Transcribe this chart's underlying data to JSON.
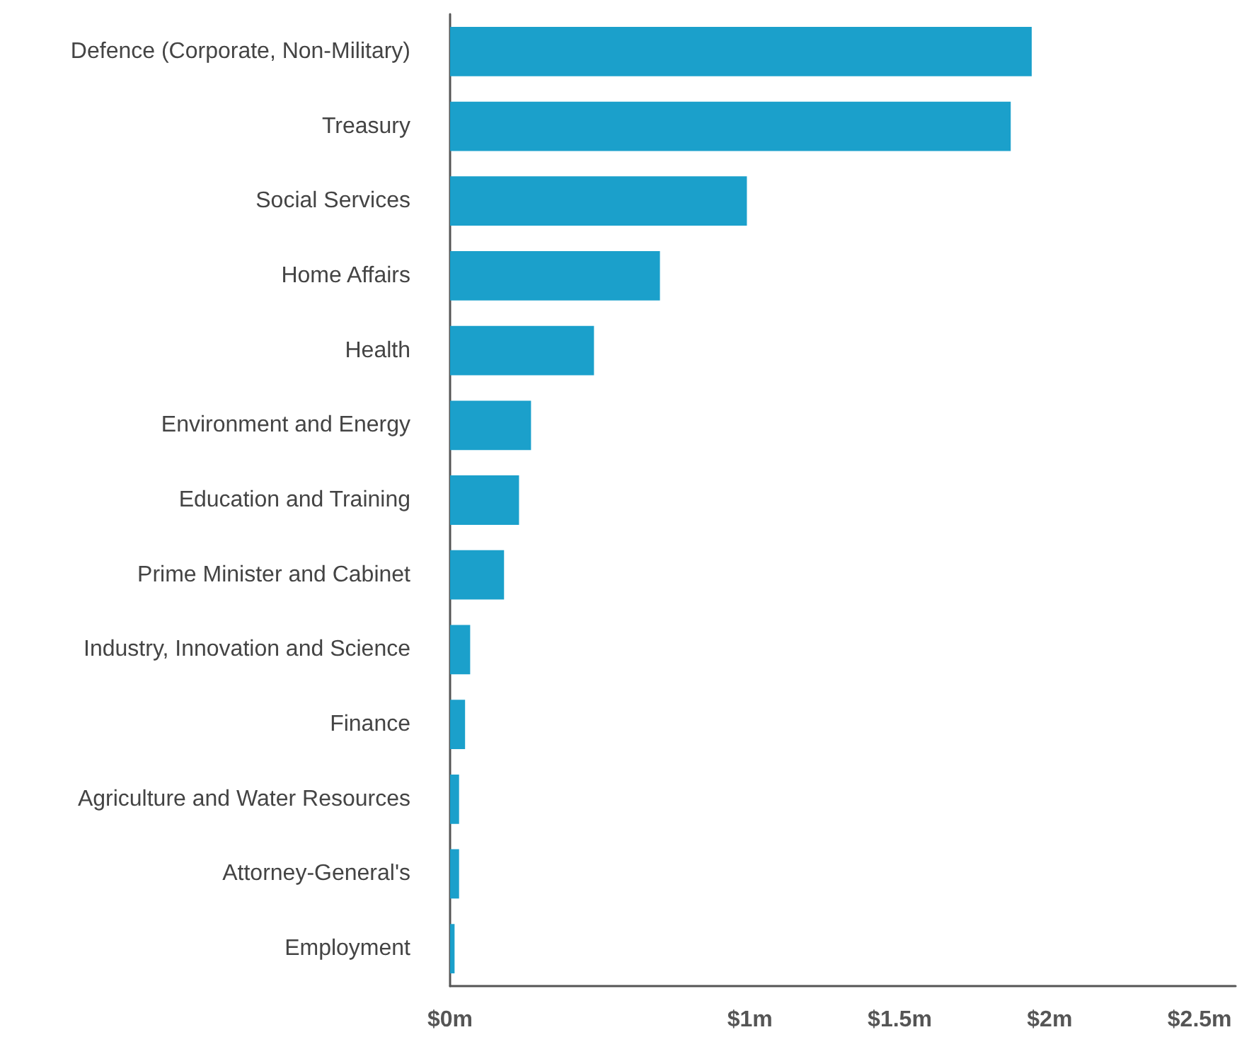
{
  "chart_data": {
    "type": "bar",
    "orientation": "horizontal",
    "categories": [
      "Defence (Corporate, Non-Military)",
      "Treasury",
      "Social Services",
      "Home Affairs",
      "Health",
      "Environment and Energy",
      "Education and Training",
      "Prime Minister and Cabinet",
      "Industry, Innovation and Science",
      "Finance",
      "Agriculture and Water Resources",
      "Attorney-General's",
      "Employment"
    ],
    "values": [
      1.94,
      1.87,
      0.99,
      0.7,
      0.48,
      0.27,
      0.23,
      0.18,
      0.067,
      0.05,
      0.03,
      0.03,
      0.015
    ],
    "color": "#1ba0cb",
    "xlim": [
      0,
      2.62
    ],
    "xticks": [
      {
        "value": 0,
        "label": "$0m"
      },
      {
        "value": 1,
        "label": "$1m"
      },
      {
        "value": 1.5,
        "label": "$1.5m"
      },
      {
        "value": 2,
        "label": "$2m"
      },
      {
        "value": 2.5,
        "label": "$2.5m"
      }
    ],
    "grid": false
  }
}
